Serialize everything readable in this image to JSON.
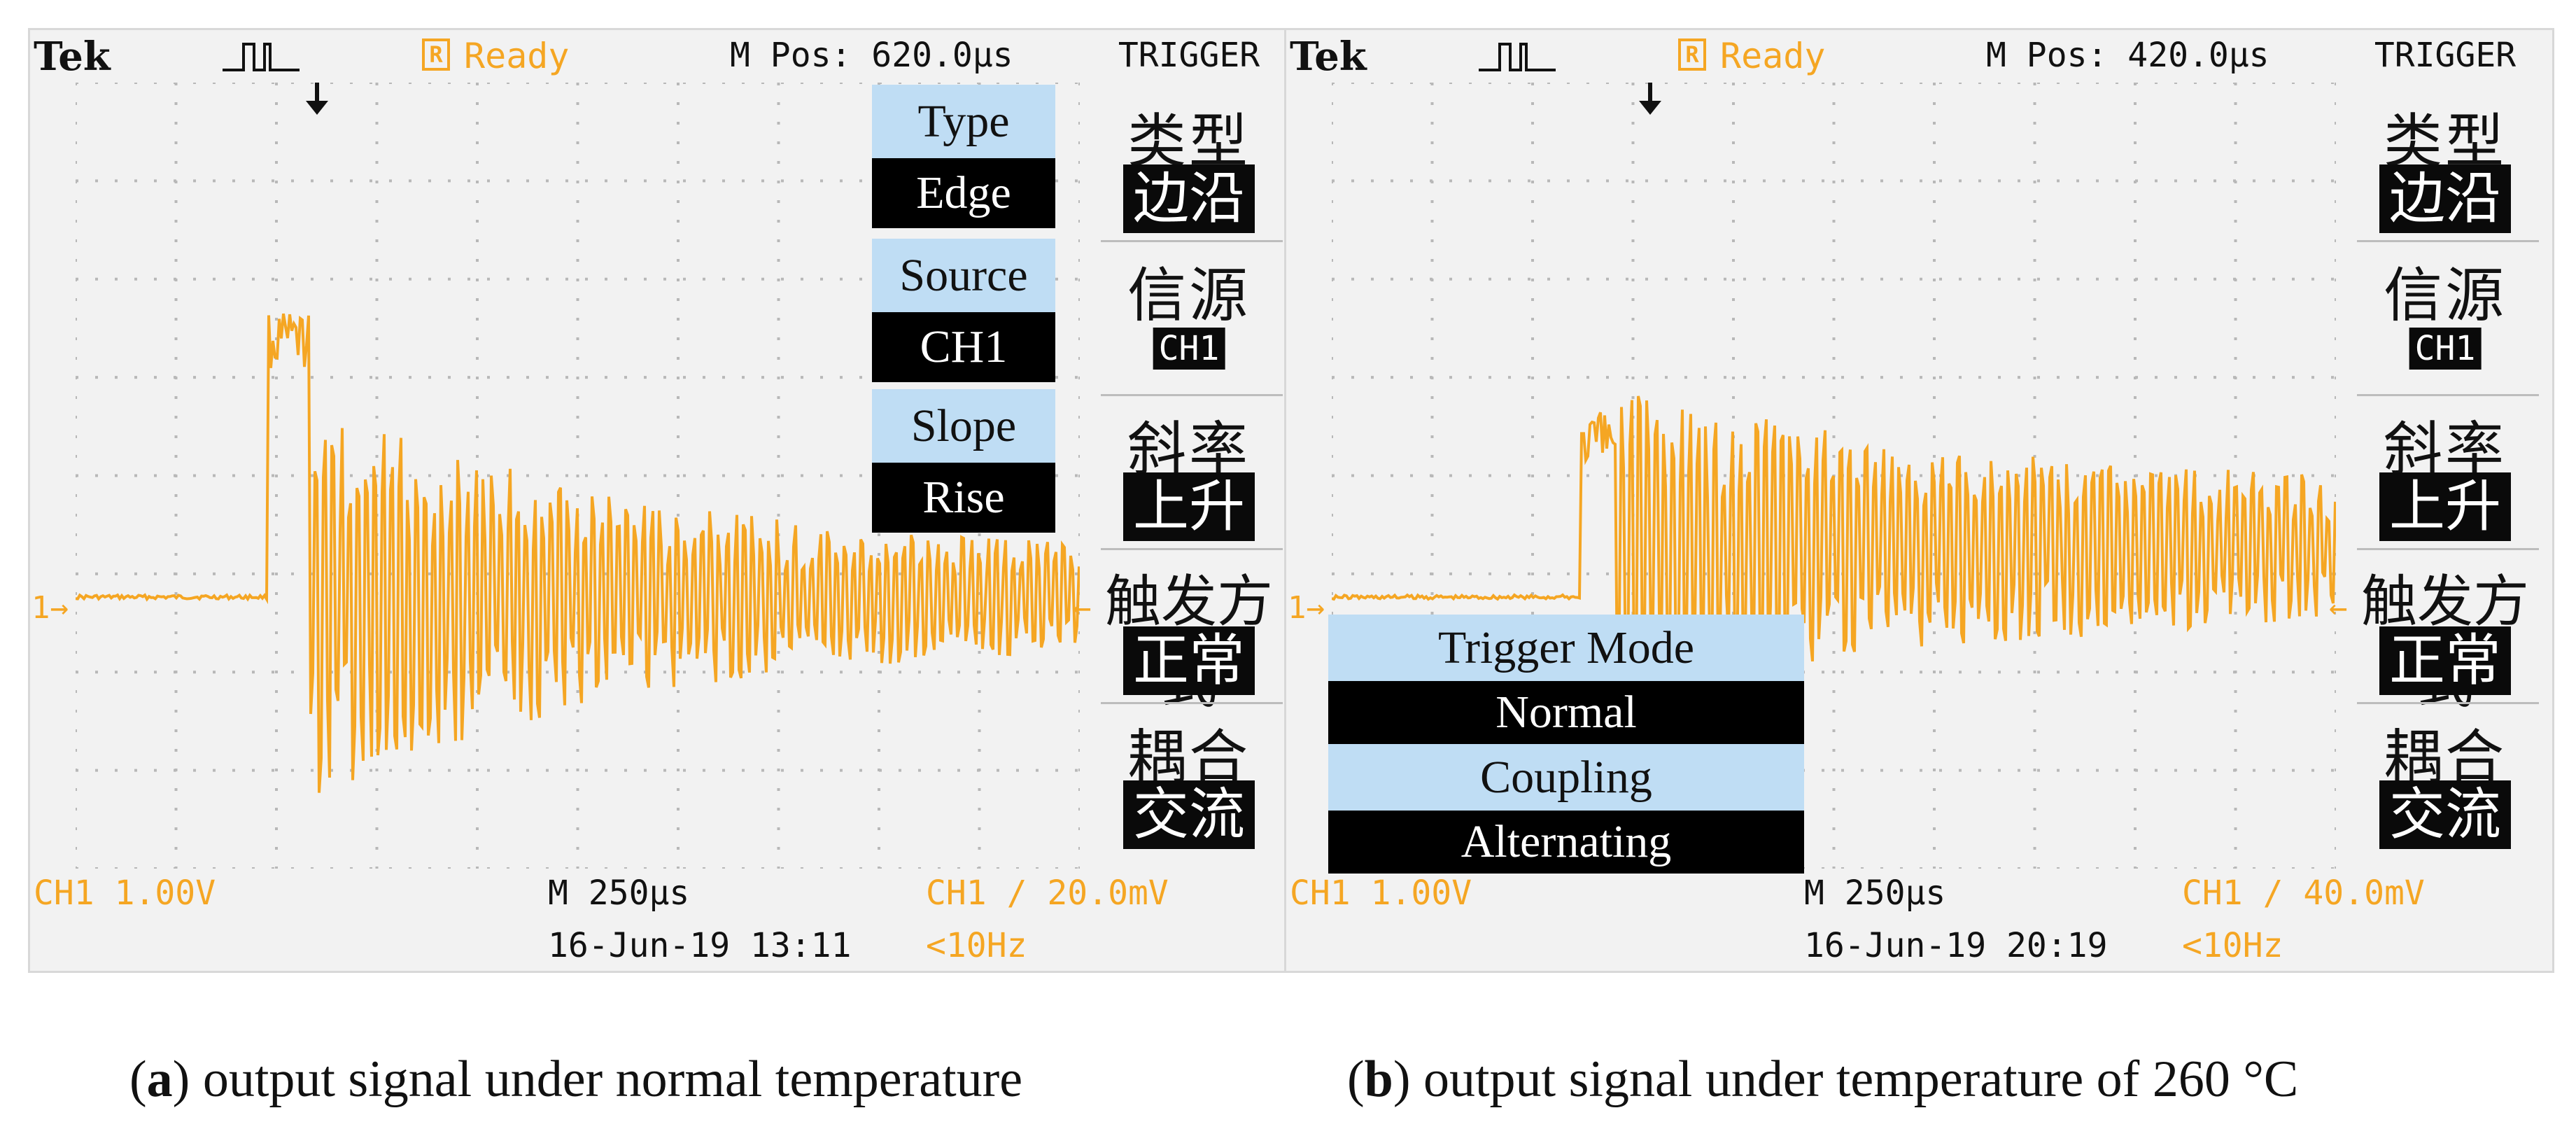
{
  "panels": [
    {
      "id": "a",
      "brand": "Tek",
      "ready_icon": "R",
      "status": "Ready",
      "mpos": "M Pos: 620.0µs",
      "menu_title": "TRIGGER",
      "menu": [
        {
          "label": "类型",
          "value": "边沿"
        },
        {
          "label": "信源",
          "value": "CH1"
        },
        {
          "label": "斜率",
          "value": "上升"
        },
        {
          "label": "触发方式",
          "value": "正常"
        },
        {
          "label": "耦合",
          "value": "交流"
        }
      ],
      "channel_scale": "CH1  1.00V",
      "timebase": "M 250µs",
      "datetime": "16-Jun-19 13:11",
      "trigger_readout": "CH1  ∕  20.0mV",
      "frequency": "<10Hz",
      "level_marker": "1→",
      "right_marker": "←",
      "annotations": [
        {
          "text": "Type",
          "style": "light"
        },
        {
          "text": "Edge",
          "style": "dark"
        },
        {
          "text": "Source",
          "style": "light"
        },
        {
          "text": "CH1",
          "style": "dark"
        },
        {
          "text": "Slope",
          "style": "light"
        },
        {
          "text": "Rise",
          "style": "dark"
        }
      ],
      "caption_letter": "a",
      "caption_text": " output signal under normal temperature"
    },
    {
      "id": "b",
      "brand": "Tek",
      "ready_icon": "R",
      "status": "Ready",
      "mpos": "M Pos: 420.0µs",
      "menu_title": "TRIGGER",
      "menu": [
        {
          "label": "类型",
          "value": "边沿"
        },
        {
          "label": "信源",
          "value": "CH1"
        },
        {
          "label": "斜率",
          "value": "上升"
        },
        {
          "label": "触发方式",
          "value": "正常"
        },
        {
          "label": "耦合",
          "value": "交流"
        }
      ],
      "channel_scale": "CH1  1.00V",
      "timebase": "M 250µs",
      "datetime": "16-Jun-19 20:19",
      "trigger_readout": "CH1  ∕  40.0mV",
      "frequency": "<10Hz",
      "level_marker": "1→",
      "right_marker": "←",
      "annotations": [
        {
          "text": "Trigger Mode",
          "style": "light"
        },
        {
          "text": "Normal",
          "style": "dark"
        },
        {
          "text": "Coupling",
          "style": "light"
        },
        {
          "text": "Alternating",
          "style": "dark"
        }
      ],
      "caption_letter": "b",
      "caption_text": " output signal under temperature of 260 °C"
    }
  ],
  "colors": {
    "trace": "#f5a623",
    "grid": "#b8b8b8",
    "highlight": "#bfddf4"
  },
  "icons": [
    "pulse-icon",
    "ready-icon",
    "trigger-position-icon"
  ]
}
